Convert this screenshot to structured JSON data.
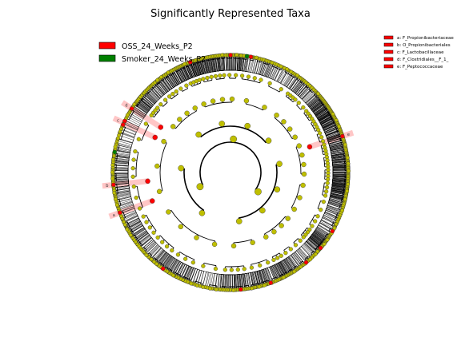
{
  "chart_data": {
    "type": "cladogram",
    "title": "Significantly Represented Taxa",
    "legend": {
      "placement": "top-left",
      "entries": [
        {
          "name": "OSS_24_Weeks_P2",
          "color": "#ff0000"
        },
        {
          "name": "Smoker_24_Weeks_P2",
          "color": "#008000"
        }
      ]
    },
    "key": {
      "placement": "top-right",
      "entries": [
        {
          "letter": "a",
          "label": "a: F_Propionibacteriaceae",
          "color": "#ff0000"
        },
        {
          "letter": "b",
          "label": "b: O_Propionibacteriales",
          "color": "#ff0000"
        },
        {
          "letter": "c",
          "label": "c: F_Lactobacillaceae",
          "color": "#ff0000"
        },
        {
          "letter": "d",
          "label": "d: F_Clostridiales__F_1_",
          "color": "#ff0000"
        },
        {
          "letter": "e",
          "label": "e: F_Peptococcaceae",
          "color": "#ff0000"
        }
      ]
    },
    "ring_levels": 6,
    "highlighted_clades": [
      {
        "letter": "a",
        "group": "OSS_24_Weeks_P2"
      },
      {
        "letter": "b",
        "group": "OSS_24_Weeks_P2"
      },
      {
        "letter": "c",
        "group": "OSS_24_Weeks_P2"
      },
      {
        "letter": "d",
        "group": "OSS_24_Weeks_P2"
      },
      {
        "letter": "e",
        "group": "OSS_24_Weeks_P2"
      }
    ],
    "colors": {
      "node_default": "#bfbf00",
      "oss_group": "#ff0000",
      "smoker_group": "#008000",
      "highlight_fill": "#ffb3b3"
    }
  }
}
